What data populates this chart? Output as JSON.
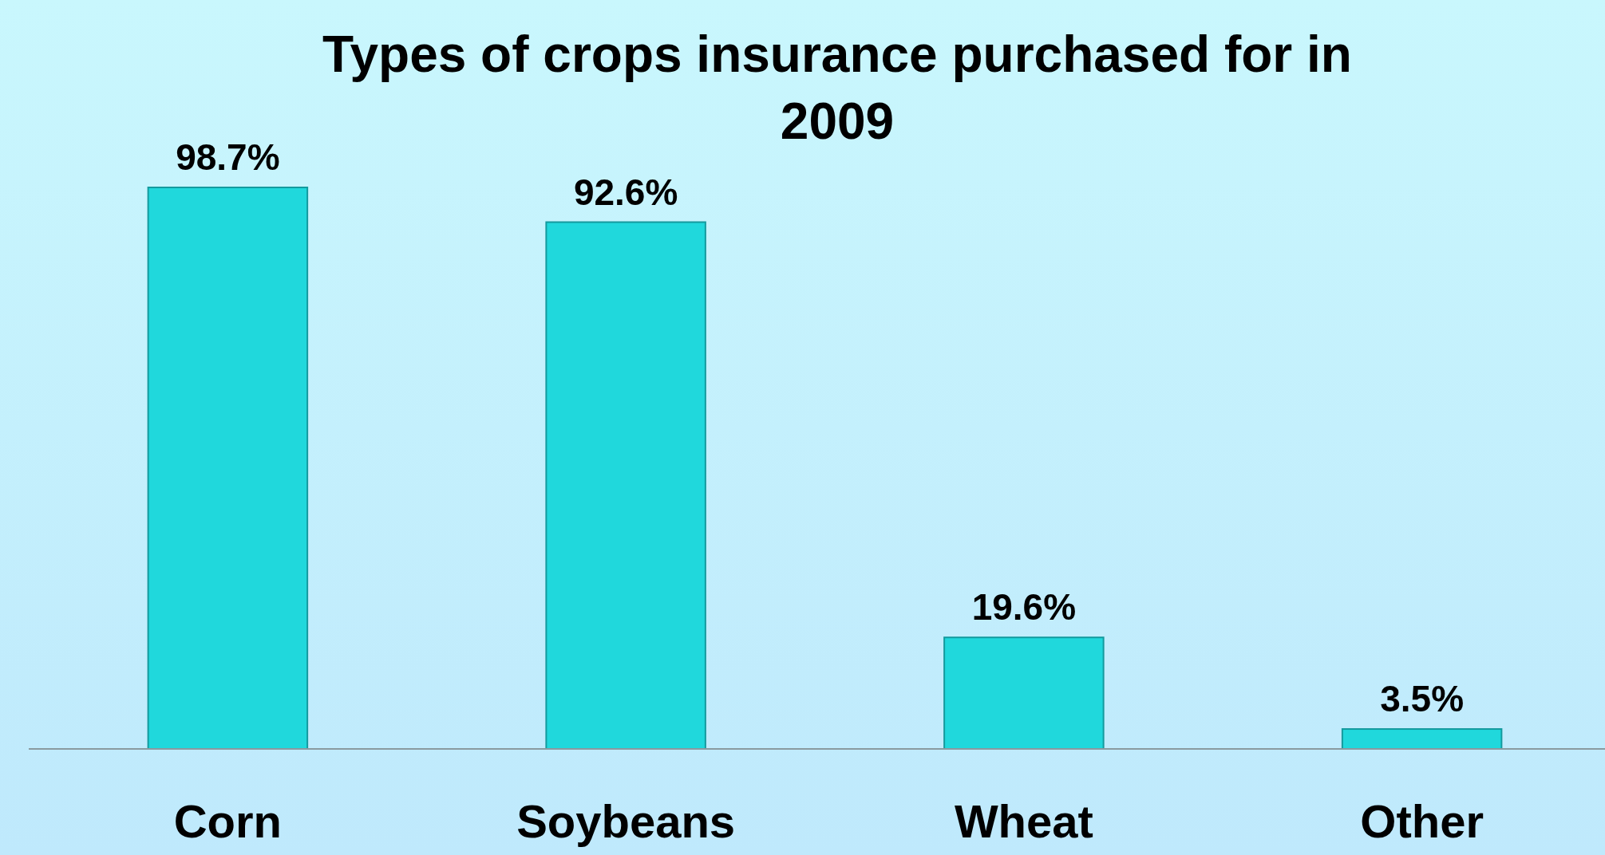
{
  "chart_data": {
    "type": "bar",
    "title": "Types of crops insurance purchased for in 2009",
    "categories": [
      "Corn",
      "Soybeans",
      "Wheat",
      "Other"
    ],
    "values": [
      98.7,
      92.6,
      19.6,
      3.5
    ],
    "value_labels": [
      "98.7%",
      "92.6%",
      "19.6%",
      "3.5%"
    ],
    "color": "#20d8dc"
  }
}
